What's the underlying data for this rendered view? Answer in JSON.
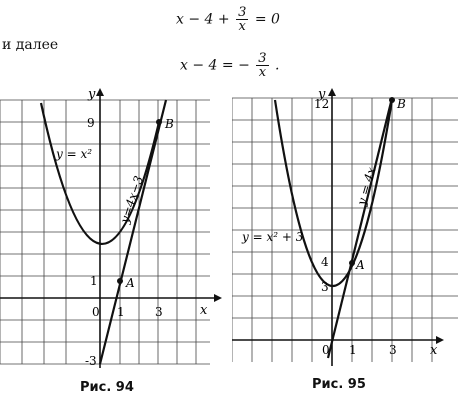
{
  "equations": {
    "eq1": {
      "lhs": "x − 4 +",
      "num": "3",
      "den": "x",
      "rhs": "= 0"
    },
    "eq2": {
      "lhs": "x − 4 = −",
      "num": "3",
      "den": "x",
      "rhs": "."
    }
  },
  "text": {
    "and_further": "и далее"
  },
  "fig94": {
    "caption": "Рис. 94",
    "x_axis_label": "x",
    "y_axis_label": "y",
    "tick_labels": {
      "x0": "0",
      "x1": "1",
      "x3": "3",
      "y1": "1",
      "y9": "9",
      "ym3": "-3"
    },
    "point_labels": {
      "A": "A",
      "B": "B"
    },
    "curve_labels": {
      "parabola": "y = x²",
      "line": "y=4x−3"
    }
  },
  "fig95": {
    "caption": "Рис. 95",
    "x_axis_label": "x",
    "y_axis_label": "y",
    "tick_labels": {
      "x0": "0",
      "x1": "1",
      "x3": "3",
      "y3": "3",
      "y4": "4",
      "y12": "12"
    },
    "point_labels": {
      "A": "A",
      "B": "B"
    },
    "curve_labels": {
      "parabola": "y = x² + 3",
      "line": "y = 4x"
    }
  }
}
